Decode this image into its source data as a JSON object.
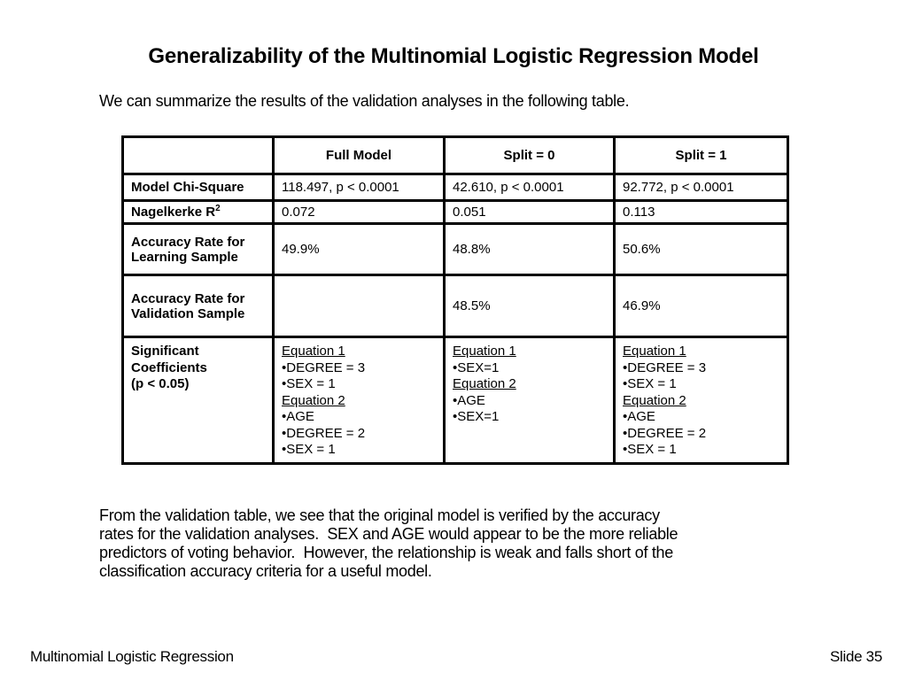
{
  "title": "Generalizability of the Multinomial Logistic Regression Model",
  "intro": "We can summarize the results of the validation analyses in the following table.",
  "table": {
    "headers": [
      "",
      "Full Model",
      "Split = 0",
      "Split = 1"
    ],
    "rows": [
      {
        "label": "Model Chi-Square",
        "cells": [
          "118.497, p < 0.0001",
          "42.610, p < 0.0001",
          "92.772, p < 0.0001"
        ]
      },
      {
        "label": "Nagelkerke R",
        "sup": "2",
        "cells": [
          "0.072",
          "0.051",
          "0.113"
        ]
      },
      {
        "label": "Accuracy Rate for\nLearning Sample",
        "cells": [
          "49.9%",
          "48.8%",
          "50.6%"
        ]
      },
      {
        "label": "Accuracy Rate for\nValidation Sample",
        "cells": [
          "",
          "48.5%",
          "46.9%"
        ]
      }
    ],
    "coef_row": {
      "label": "Significant\nCoefficients\n(p < 0.05)",
      "cells": [
        [
          {
            "t": "Equation 1",
            "u": true
          },
          {
            "t": "DEGREE = 3",
            "b": true
          },
          {
            "t": "SEX = 1",
            "b": true
          },
          {
            "t": "Equation 2",
            "u": true
          },
          {
            "t": "AGE",
            "b": true
          },
          {
            "t": "DEGREE = 2",
            "b": true
          },
          {
            "t": "SEX = 1",
            "b": true
          }
        ],
        [
          {
            "t": "Equation 1",
            "u": true
          },
          {
            "t": "SEX=1",
            "b": true
          },
          {
            "t": "Equation 2",
            "u": true
          },
          {
            "t": "AGE",
            "b": true
          },
          {
            "t": "SEX=1",
            "b": true
          }
        ],
        [
          {
            "t": "Equation 1",
            "u": true
          },
          {
            "t": "DEGREE = 3",
            "b": true
          },
          {
            "t": "SEX = 1",
            "b": true
          },
          {
            "t": "Equation 2",
            "u": true
          },
          {
            "t": "AGE",
            "b": true
          },
          {
            "t": "DEGREE = 2",
            "b": true
          },
          {
            "t": "SEX = 1",
            "b": true
          }
        ]
      ]
    }
  },
  "paragraph": "From the validation table, we see that the original model is verified by the accuracy\nrates for the validation analyses.  SEX and AGE would appear to be the more reliable\npredictors of voting behavior.  However, the relationship is weak and falls short of the\nclassification accuracy criteria for a useful model.",
  "footer": {
    "left": "Multinomial Logistic Regression",
    "right": "Slide 35"
  },
  "bullet_char": "•"
}
